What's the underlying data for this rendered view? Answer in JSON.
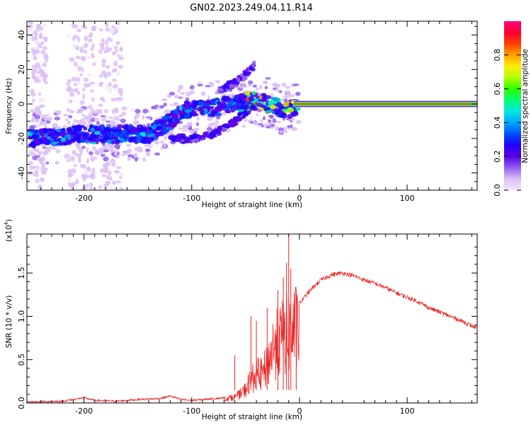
{
  "chart_data": [
    {
      "type": "heatmap",
      "title": "GN02.2023.249.04.11.R14",
      "xlabel": "Height of straight line (km)",
      "ylabel": "Frequency (Hz)",
      "xlim": [
        -253,
        165
      ],
      "ylim": [
        -50,
        48
      ],
      "xticks": [
        -200,
        -100,
        0,
        100
      ],
      "xtick_labels": [
        "-200",
        "-100",
        "0",
        "100"
      ],
      "yticks": [
        40,
        20,
        0,
        -20,
        -40
      ],
      "ytick_labels": [
        "40",
        "20",
        "0",
        "-20",
        "-40"
      ],
      "colorbar": {
        "label": "Normalized spectral amplitude",
        "range": [
          0,
          1
        ],
        "ticks": [
          0.0,
          0.2,
          0.4,
          0.6,
          0.8
        ],
        "tick_labels": [
          "0.0",
          "0.2",
          "0.4",
          "0.6",
          "0.8"
        ],
        "colors": [
          "#f4e8fb",
          "#dcc0f6",
          "#9060f0",
          "#5a00e8",
          "#2000ff",
          "#0050ff",
          "#00a8ff",
          "#00e8e0",
          "#00ff70",
          "#30ff00",
          "#b0ff00",
          "#ffee00",
          "#ffa000",
          "#ff4000",
          "#ff0030",
          "#ff0080"
        ]
      },
      "features": {
        "main_trace": {
          "x": [
            -245,
            -220,
            -200,
            -180,
            -160,
            -140,
            -120,
            -110,
            -100,
            -80,
            -60,
            -45,
            -35,
            -20,
            -10,
            0,
            165
          ],
          "y": [
            -20,
            -19,
            -17,
            -18,
            -17,
            -18,
            -10,
            -4,
            -3,
            -2,
            0,
            2,
            1,
            -2,
            -3,
            -1,
            0
          ]
        },
        "upper_branch": {
          "x": [
            -75,
            -60,
            -48,
            -42
          ],
          "y": [
            8,
            12,
            18,
            22
          ]
        },
        "lower_branch": {
          "x": [
            -120,
            -100,
            -80,
            -60,
            -45
          ],
          "y": [
            -20,
            -20,
            -18,
            -10,
            -2
          ]
        },
        "steady_line_hz": 0
      }
    },
    {
      "type": "line",
      "xlabel": "Height of straight line (km)",
      "ylabel": "SNR (10 * v/v)",
      "yscale_label": "(x10",
      "yscale_exponent": "4",
      "xlim": [
        -253,
        165
      ],
      "ylim": [
        0,
        1.95
      ],
      "xticks": [
        -200,
        -100,
        0,
        100
      ],
      "xtick_labels": [
        "-200",
        "-100",
        "0",
        "100"
      ],
      "yticks": [
        0.0,
        0.5,
        1.0,
        1.5
      ],
      "ytick_labels": [
        "0.0",
        "0.5",
        "1.0",
        "1.5"
      ],
      "color": "#ee2222",
      "x": [
        -253,
        -220,
        -200,
        -190,
        -170,
        -150,
        -130,
        -120,
        -110,
        -100,
        -90,
        -80,
        -70,
        -60,
        -55,
        -50,
        -45,
        -40,
        -35,
        -30,
        -25,
        -20,
        -15,
        -10,
        -5,
        0,
        10,
        20,
        30,
        40,
        50,
        60,
        70,
        80,
        90,
        100,
        110,
        120,
        130,
        140,
        150,
        160,
        165
      ],
      "y": [
        0.01,
        0.02,
        0.06,
        0.03,
        0.02,
        0.04,
        0.05,
        0.08,
        0.04,
        0.03,
        0.04,
        0.05,
        0.06,
        0.09,
        0.13,
        0.2,
        0.35,
        0.42,
        0.42,
        0.55,
        0.8,
        0.9,
        0.98,
        1.05,
        1.08,
        1.15,
        1.3,
        1.42,
        1.48,
        1.5,
        1.47,
        1.42,
        1.38,
        1.33,
        1.27,
        1.22,
        1.17,
        1.1,
        1.05,
        1.0,
        0.95,
        0.89,
        0.86
      ],
      "noise_bursts": [
        {
          "x": -60,
          "peak": 0.55
        },
        {
          "x": -45,
          "peak": 1.0
        },
        {
          "x": -40,
          "peak": 0.95
        },
        {
          "x": -30,
          "peak": 1.1
        },
        {
          "x": -20,
          "peak": 1.3
        },
        {
          "x": -15,
          "peak": 1.45
        },
        {
          "x": -12,
          "peak": 1.62
        },
        {
          "x": -10,
          "peak": 1.95
        },
        {
          "x": -8,
          "peak": 1.55
        },
        {
          "x": -3,
          "peak": 1.3
        }
      ]
    }
  ]
}
